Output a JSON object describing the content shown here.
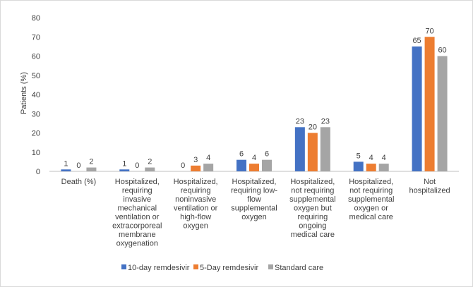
{
  "chart_data": {
    "type": "bar",
    "title": "",
    "xlabel": "",
    "ylabel": "Patients (%)",
    "ylim": [
      0,
      80
    ],
    "yticks": [
      0,
      10,
      20,
      30,
      40,
      50,
      60,
      70,
      80
    ],
    "grid": false,
    "legend_position": "bottom",
    "categories": [
      [
        "Death (%)"
      ],
      [
        "Hospitalized,",
        "requiring",
        "invasive",
        "mechanical",
        "ventilation or",
        "extracorporeal",
        "membrane",
        "oxygenation"
      ],
      [
        "Hospitalized,",
        "requiring",
        "noninvasive",
        "ventilation or",
        "high-flow",
        "oxygen"
      ],
      [
        "Hospitalized,",
        "requiring low-",
        "flow",
        "supplemental",
        "oxygen"
      ],
      [
        "Hospitalized,",
        "not requiring",
        "supplemental",
        "oxygen but",
        "requiring",
        "ongoing",
        "medical care"
      ],
      [
        "Hospitalized,",
        "not requiring",
        "supplemental",
        "oxygen or",
        "medical care"
      ],
      [
        "Not",
        "hospitalized"
      ]
    ],
    "series": [
      {
        "name": "10-day remdesivir",
        "color": "#4472c4",
        "values": [
          1,
          1,
          0,
          6,
          23,
          5,
          65
        ]
      },
      {
        "name": "5-Day remdesivir",
        "color": "#ed7d31",
        "values": [
          0,
          0,
          3,
          4,
          20,
          4,
          70
        ]
      },
      {
        "name": "Standard care",
        "color": "#a5a5a5",
        "values": [
          2,
          2,
          4,
          6,
          23,
          4,
          60
        ]
      }
    ]
  }
}
